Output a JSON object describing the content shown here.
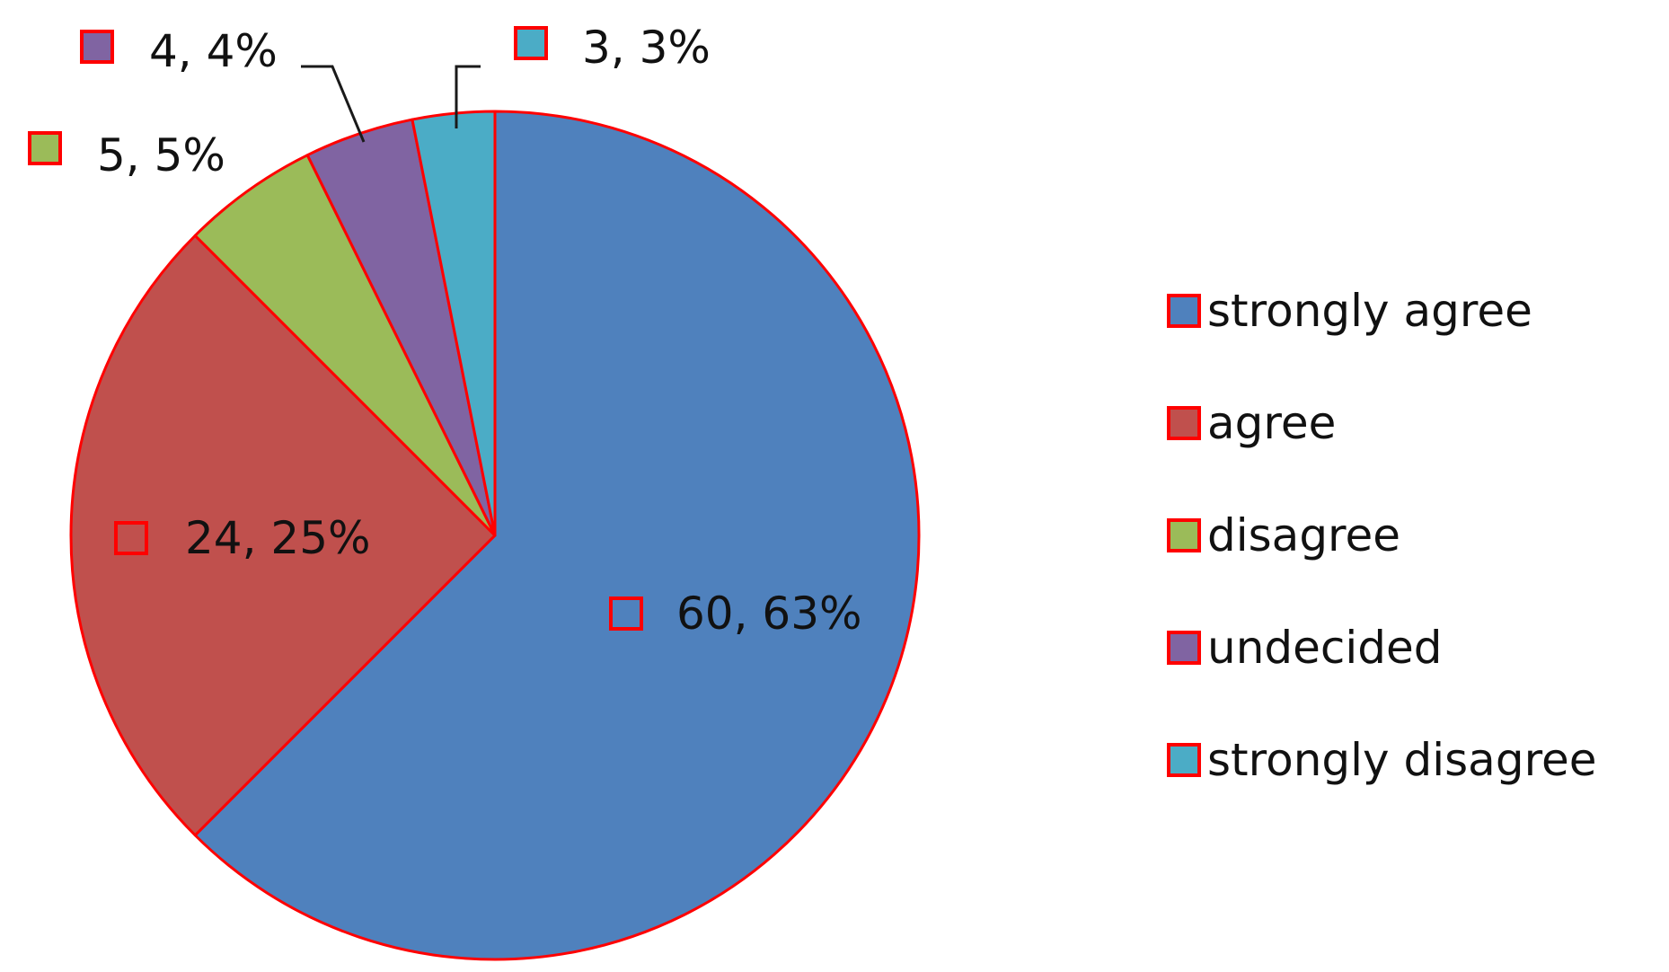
{
  "chart_data": {
    "type": "pie",
    "title": "",
    "slices": [
      {
        "label": "strongly agree",
        "value": 60,
        "percent": "63%",
        "color": "#4F81BD",
        "data_label": "60, 63%"
      },
      {
        "label": "agree",
        "value": 24,
        "percent": "25%",
        "color": "#C0504D",
        "data_label": "24, 25%"
      },
      {
        "label": "disagree",
        "value": 5,
        "percent": "5%",
        "color": "#9BBB59",
        "data_label": "5, 5%"
      },
      {
        "label": "undecided",
        "value": 4,
        "percent": "4%",
        "color": "#8064A2",
        "data_label": "4, 4%"
      },
      {
        "label": "strongly disagree",
        "value": 3,
        "percent": "3%",
        "color": "#4BACC6",
        "data_label": "3, 3%"
      }
    ],
    "start_angle": "12 o'clock",
    "direction": "clockwise",
    "legend_position": "right",
    "slice_border_color": "#FF0000",
    "marker_border_color": "#FF0000"
  }
}
